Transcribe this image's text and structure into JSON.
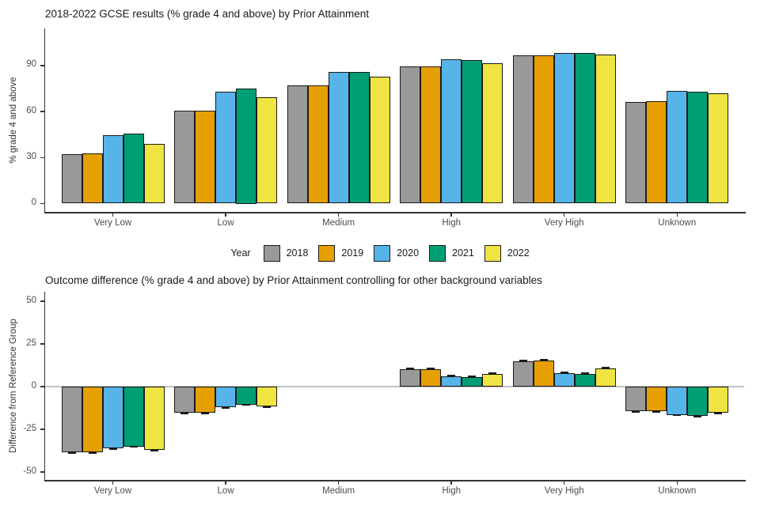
{
  "colors": {
    "background": "#ffffff",
    "bar_outline": "#1a1a1a",
    "axis_line": "#333333",
    "tick_text": "#4d4d4d",
    "zero_line": "#c2c2c2",
    "year_2018": "#999999",
    "year_2019": "#E69F00",
    "year_2020": "#56B4E9",
    "year_2021": "#009E73",
    "year_2022": "#F0E442"
  },
  "legend": {
    "title": "Year",
    "entries": [
      {
        "label": "2018",
        "color": "#999999"
      },
      {
        "label": "2019",
        "color": "#E69F00"
      },
      {
        "label": "2020",
        "color": "#56B4E9"
      },
      {
        "label": "2021",
        "color": "#009E73"
      },
      {
        "label": "2022",
        "color": "#F0E442"
      }
    ]
  },
  "chart_data": [
    {
      "type": "bar",
      "title": "2018-2022 GCSE results (% grade 4 and above) by Prior Attainment",
      "xlabel": "",
      "ylabel": "% grade 4 and above",
      "categories": [
        "Very Low",
        "Low",
        "Medium",
        "High",
        "Very High",
        "Unknown"
      ],
      "series": [
        {
          "name": "2018",
          "color": "#999999",
          "values": [
            32,
            60.5,
            77,
            89.5,
            96.5,
            66
          ]
        },
        {
          "name": "2019",
          "color": "#E69F00",
          "values": [
            32.5,
            60.5,
            77,
            89.5,
            96.5,
            67
          ]
        },
        {
          "name": "2020",
          "color": "#56B4E9",
          "values": [
            44.5,
            73,
            86,
            94,
            98,
            73.5
          ]
        },
        {
          "name": "2021",
          "color": "#009E73",
          "values": [
            45.5,
            75,
            86,
            93.5,
            98,
            73
          ]
        },
        {
          "name": "2022",
          "color": "#F0E442",
          "values": [
            39,
            69.5,
            82.5,
            91.5,
            97,
            72
          ]
        }
      ],
      "yticks": [
        0,
        30,
        60,
        90
      ],
      "ylim": [
        0,
        114
      ],
      "grid": false,
      "legend_position": "below",
      "zero_line": false,
      "error_bar": null
    },
    {
      "type": "bar",
      "title": "Outcome difference (% grade 4 and above) by Prior Attainment controlling for other background variables",
      "xlabel": "",
      "ylabel": "Difference from Reference Group",
      "categories": [
        "Very Low",
        "Low",
        "Medium",
        "High",
        "Very High",
        "Unknown"
      ],
      "reference_category": "Medium",
      "series": [
        {
          "name": "2018",
          "color": "#999999",
          "values": [
            -38.5,
            -15.5,
            null,
            10,
            15,
            -14.5
          ]
        },
        {
          "name": "2019",
          "color": "#E69F00",
          "values": [
            -38.5,
            -15.5,
            null,
            10,
            15.5,
            -14.5
          ]
        },
        {
          "name": "2020",
          "color": "#56B4E9",
          "values": [
            -36,
            -12,
            null,
            6,
            8,
            -16.5
          ]
        },
        {
          "name": "2021",
          "color": "#009E73",
          "values": [
            -35,
            -10.5,
            null,
            5.5,
            7.5,
            -17
          ]
        },
        {
          "name": "2022",
          "color": "#F0E442",
          "values": [
            -37,
            -11.5,
            null,
            7.5,
            10.5,
            -15.5
          ]
        }
      ],
      "yticks": [
        -50,
        -25,
        0,
        25,
        50
      ],
      "ylim": [
        -55,
        55
      ],
      "grid": false,
      "zero_line": true,
      "error_bar": 0.7
    }
  ]
}
